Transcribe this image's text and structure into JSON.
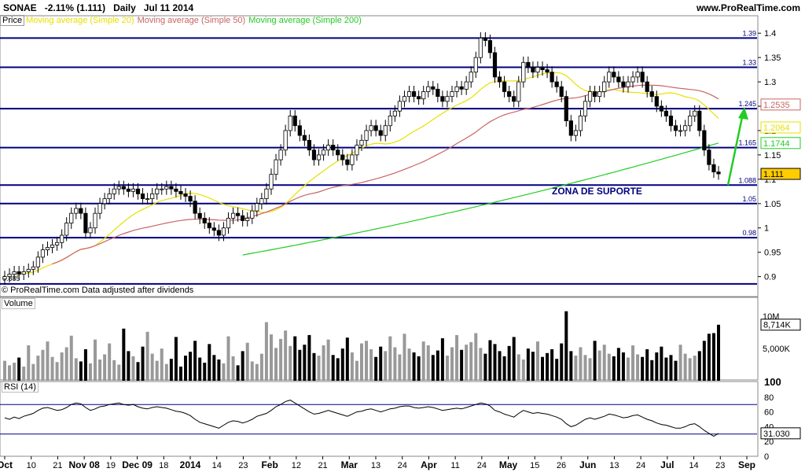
{
  "header": {
    "symbol": "SONAE",
    "change": "-2.11% (1.111)",
    "period": "Daily",
    "date": "Jul 11 2014",
    "site": "www.ProRealTime.com"
  },
  "legend": {
    "price_label": "Price",
    "ma20": "Moving average (Simple 20)",
    "ma50": "Moving average (Simple 50)",
    "ma200": "Moving average (Simple 200)"
  },
  "footer_note": "© ProRealTime.com  Data adjusted after dividends",
  "annotation": "ZONA DE SUPORTE",
  "colors": {
    "ma20": "#e8e000",
    "ma50": "#c86464",
    "ma200": "#22cc22",
    "level_line": "#000080",
    "arrow": "#22cc22",
    "up_candle": "#ffffff",
    "down_candle": "#000000",
    "current_badge": "#ffcc00"
  },
  "panels": {
    "volume_label": "Volume",
    "rsi_label": "RSI (14)"
  },
  "chart_data": {
    "type": "candlestick",
    "price_axis": {
      "ylim": [
        0.88,
        1.41
      ],
      "ticks": [
        "1.4",
        "1.35",
        "1.3",
        "1.25",
        "1.2",
        "1.15",
        "1.1",
        "1.05",
        "1",
        "0.95",
        "0.9"
      ]
    },
    "levels": [
      "1.39",
      "1.33",
      "1.245",
      "1.165",
      "1.088",
      "1.05",
      "0.98",
      "0.885"
    ],
    "badges": [
      {
        "value": "1.2535",
        "series": "ma50"
      },
      {
        "value": "1.2064",
        "series": "ma20"
      },
      {
        "value": "1.1744",
        "series": "ma200"
      },
      {
        "value": "1.111",
        "series": "price"
      }
    ],
    "low_label": "0.885",
    "volume_axis": {
      "ticks": [
        "10M",
        "5,000K"
      ],
      "current": "8,714K"
    },
    "rsi_axis": {
      "ticks": [
        "100",
        "80",
        "60",
        "40",
        "20",
        "0"
      ],
      "current": "31.030",
      "bands": [
        70,
        30
      ]
    },
    "x_ticks": [
      "Oct",
      "10",
      "21",
      "Nov 08",
      "19",
      "Dec 09",
      "18",
      "2014",
      "14",
      "23",
      "Feb",
      "12",
      "21",
      "Mar",
      "13",
      "24",
      "Apr",
      "11",
      "24",
      "May",
      "15",
      "26",
      "Jun",
      "13",
      "24",
      "Jul",
      "14",
      "23",
      "Sep"
    ],
    "closes": [
      0.9,
      0.905,
      0.91,
      0.905,
      0.91,
      0.915,
      0.92,
      0.94,
      0.955,
      0.96,
      0.965,
      0.97,
      0.985,
      1.01,
      1.03,
      1.04,
      1.03,
      0.99,
      1.0,
      1.03,
      1.05,
      1.06,
      1.07,
      1.08,
      1.085,
      1.08,
      1.075,
      1.08,
      1.07,
      1.06,
      1.06,
      1.07,
      1.08,
      1.08,
      1.085,
      1.08,
      1.075,
      1.07,
      1.065,
      1.055,
      1.03,
      1.02,
      1.01,
      1.0,
      0.995,
      0.985,
      1.0,
      1.02,
      1.03,
      1.025,
      1.015,
      1.02,
      1.035,
      1.05,
      1.06,
      1.08,
      1.11,
      1.14,
      1.16,
      1.2,
      1.23,
      1.21,
      1.19,
      1.18,
      1.16,
      1.14,
      1.15,
      1.16,
      1.17,
      1.16,
      1.15,
      1.14,
      1.13,
      1.15,
      1.17,
      1.18,
      1.2,
      1.21,
      1.2,
      1.19,
      1.21,
      1.23,
      1.24,
      1.26,
      1.27,
      1.28,
      1.27,
      1.265,
      1.28,
      1.29,
      1.285,
      1.27,
      1.26,
      1.27,
      1.28,
      1.29,
      1.285,
      1.3,
      1.32,
      1.35,
      1.39,
      1.385,
      1.36,
      1.31,
      1.3,
      1.28,
      1.27,
      1.26,
      1.3,
      1.34,
      1.33,
      1.32,
      1.33,
      1.325,
      1.32,
      1.3,
      1.29,
      1.27,
      1.22,
      1.19,
      1.2,
      1.23,
      1.26,
      1.28,
      1.27,
      1.28,
      1.3,
      1.32,
      1.31,
      1.3,
      1.29,
      1.3,
      1.31,
      1.32,
      1.3,
      1.28,
      1.27,
      1.25,
      1.24,
      1.23,
      1.21,
      1.2,
      1.2,
      1.21,
      1.23,
      1.24,
      1.2,
      1.16,
      1.13,
      1.115,
      1.111
    ],
    "volumes": [
      3.1,
      2.4,
      2.8,
      3.6,
      2.2,
      5.5,
      2.6,
      3.9,
      4.8,
      6.1,
      3.7,
      2.9,
      4.4,
      5.2,
      7.0,
      3.5,
      3.0,
      4.9,
      2.7,
      6.4,
      3.3,
      4.1,
      5.8,
      3.2,
      2.5,
      8.1,
      4.6,
      3.8,
      2.9,
      5.3,
      7.6,
      4.2,
      3.1,
      5.0,
      2.6,
      3.4,
      6.8,
      2.2,
      3.9,
      4.5,
      6.2,
      3.6,
      2.8,
      5.7,
      4.0,
      3.3,
      2.7,
      6.9,
      3.8,
      2.4,
      4.6,
      5.9,
      3.0,
      2.6,
      4.2,
      9.1,
      7.2,
      5.1,
      6.5,
      7.8,
      5.4,
      6.9,
      4.8,
      5.6,
      7.1,
      4.3,
      3.9,
      5.5,
      6.4,
      4.0,
      3.5,
      5.0,
      6.7,
      4.4,
      3.1,
      5.8,
      6.2,
      4.9,
      3.7,
      5.3,
      4.6,
      6.9,
      5.2,
      4.1,
      7.3,
      5.0,
      4.4,
      3.8,
      6.1,
      5.5,
      4.0,
      4.7,
      6.6,
      3.9,
      5.2,
      7.1,
      4.8,
      5.6,
      6.0,
      7.4,
      5.1,
      4.2,
      6.3,
      5.7,
      4.6,
      3.8,
      5.4,
      6.8,
      4.1,
      3.3,
      5.0,
      4.5,
      6.1,
      3.7,
      4.3,
      4.9,
      3.4,
      5.8,
      10.8,
      4.6,
      3.9,
      5.2,
      4.0,
      3.5,
      6.2,
      4.7,
      5.6,
      4.2,
      3.8,
      5.1,
      4.4,
      3.6,
      5.5,
      4.1,
      3.7,
      4.9,
      3.2,
      4.4,
      5.3,
      3.6,
      4.0,
      3.1,
      5.6,
      4.2,
      3.5,
      3.9,
      4.6,
      6.2,
      7.3,
      7.4,
      8.7
    ],
    "rsi": [
      52,
      50,
      53,
      51,
      54,
      56,
      58,
      62,
      65,
      66,
      64,
      62,
      63,
      66,
      70,
      72,
      71,
      66,
      62,
      64,
      67,
      68,
      70,
      71,
      72,
      70,
      69,
      70,
      67,
      65,
      64,
      66,
      67,
      66,
      65,
      63,
      61,
      60,
      58,
      55,
      50,
      46,
      44,
      42,
      40,
      38,
      42,
      46,
      48,
      47,
      45,
      47,
      50,
      54,
      56,
      58,
      62,
      67,
      70,
      74,
      76,
      72,
      68,
      64,
      60,
      57,
      58,
      60,
      62,
      60,
      58,
      56,
      54,
      57,
      60,
      61,
      63,
      64,
      62,
      60,
      62,
      64,
      65,
      67,
      68,
      68,
      66,
      65,
      66,
      67,
      66,
      64,
      62,
      63,
      64,
      65,
      64,
      66,
      68,
      70,
      72,
      71,
      68,
      62,
      60,
      57,
      55,
      53,
      58,
      62,
      60,
      58,
      59,
      58,
      57,
      55,
      53,
      50,
      44,
      40,
      42,
      46,
      50,
      52,
      50,
      52,
      54,
      57,
      56,
      54,
      52,
      53,
      55,
      56,
      53,
      50,
      48,
      45,
      43,
      42,
      40,
      38,
      38,
      40,
      43,
      44,
      40,
      35,
      31,
      27,
      31
    ]
  }
}
